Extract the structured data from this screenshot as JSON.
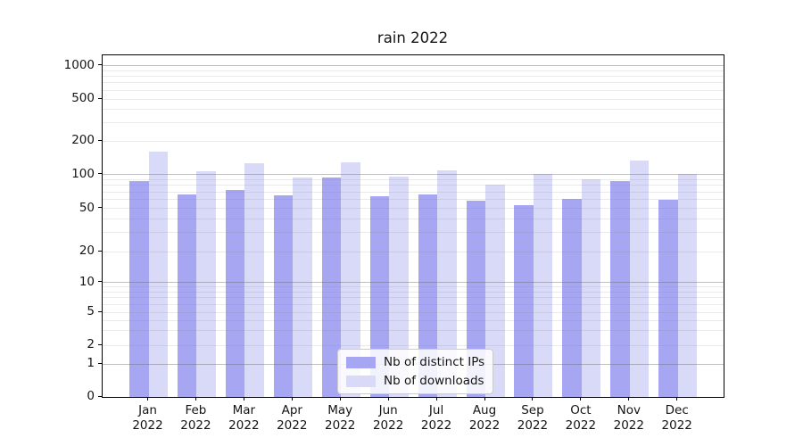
{
  "chart_data": {
    "type": "bar",
    "title": "rain 2022",
    "xlabel": "",
    "ylabel": "",
    "yscale": "symlog",
    "ylim": [
      0,
      1000
    ],
    "grid": true,
    "categories_month": [
      "Jan",
      "Feb",
      "Mar",
      "Apr",
      "May",
      "Jun",
      "Jul",
      "Aug",
      "Sep",
      "Oct",
      "Nov",
      "Dec"
    ],
    "categories_year": "2022",
    "ytick_labels": [
      "0",
      "1",
      "2",
      "5",
      "10",
      "20",
      "50",
      "100",
      "200",
      "500",
      "1000"
    ],
    "ytick_values": [
      0,
      1,
      2,
      5,
      10,
      20,
      50,
      100,
      200,
      500,
      1000
    ],
    "major_grid_values": [
      1,
      10,
      100,
      1000
    ],
    "minor_grid_values": [
      2,
      3,
      4,
      5,
      6,
      7,
      8,
      9,
      20,
      30,
      40,
      50,
      60,
      70,
      80,
      90,
      200,
      300,
      400,
      500,
      600,
      700,
      800,
      900
    ],
    "series": [
      {
        "name": "Nb of distinct IPs",
        "color": "#a6a6f2",
        "values": [
          88,
          66,
          73,
          65,
          95,
          64,
          67,
          58,
          53,
          61,
          88,
          60
        ]
      },
      {
        "name": "Nb of downloads",
        "color": "#d9d9f8",
        "values": [
          160,
          107,
          126,
          94,
          128,
          96,
          110,
          82,
          101,
          90,
          133,
          101
        ]
      }
    ],
    "legend": {
      "position": "lower center",
      "labels": [
        "Nb of distinct IPs",
        "Nb of downloads"
      ]
    }
  }
}
